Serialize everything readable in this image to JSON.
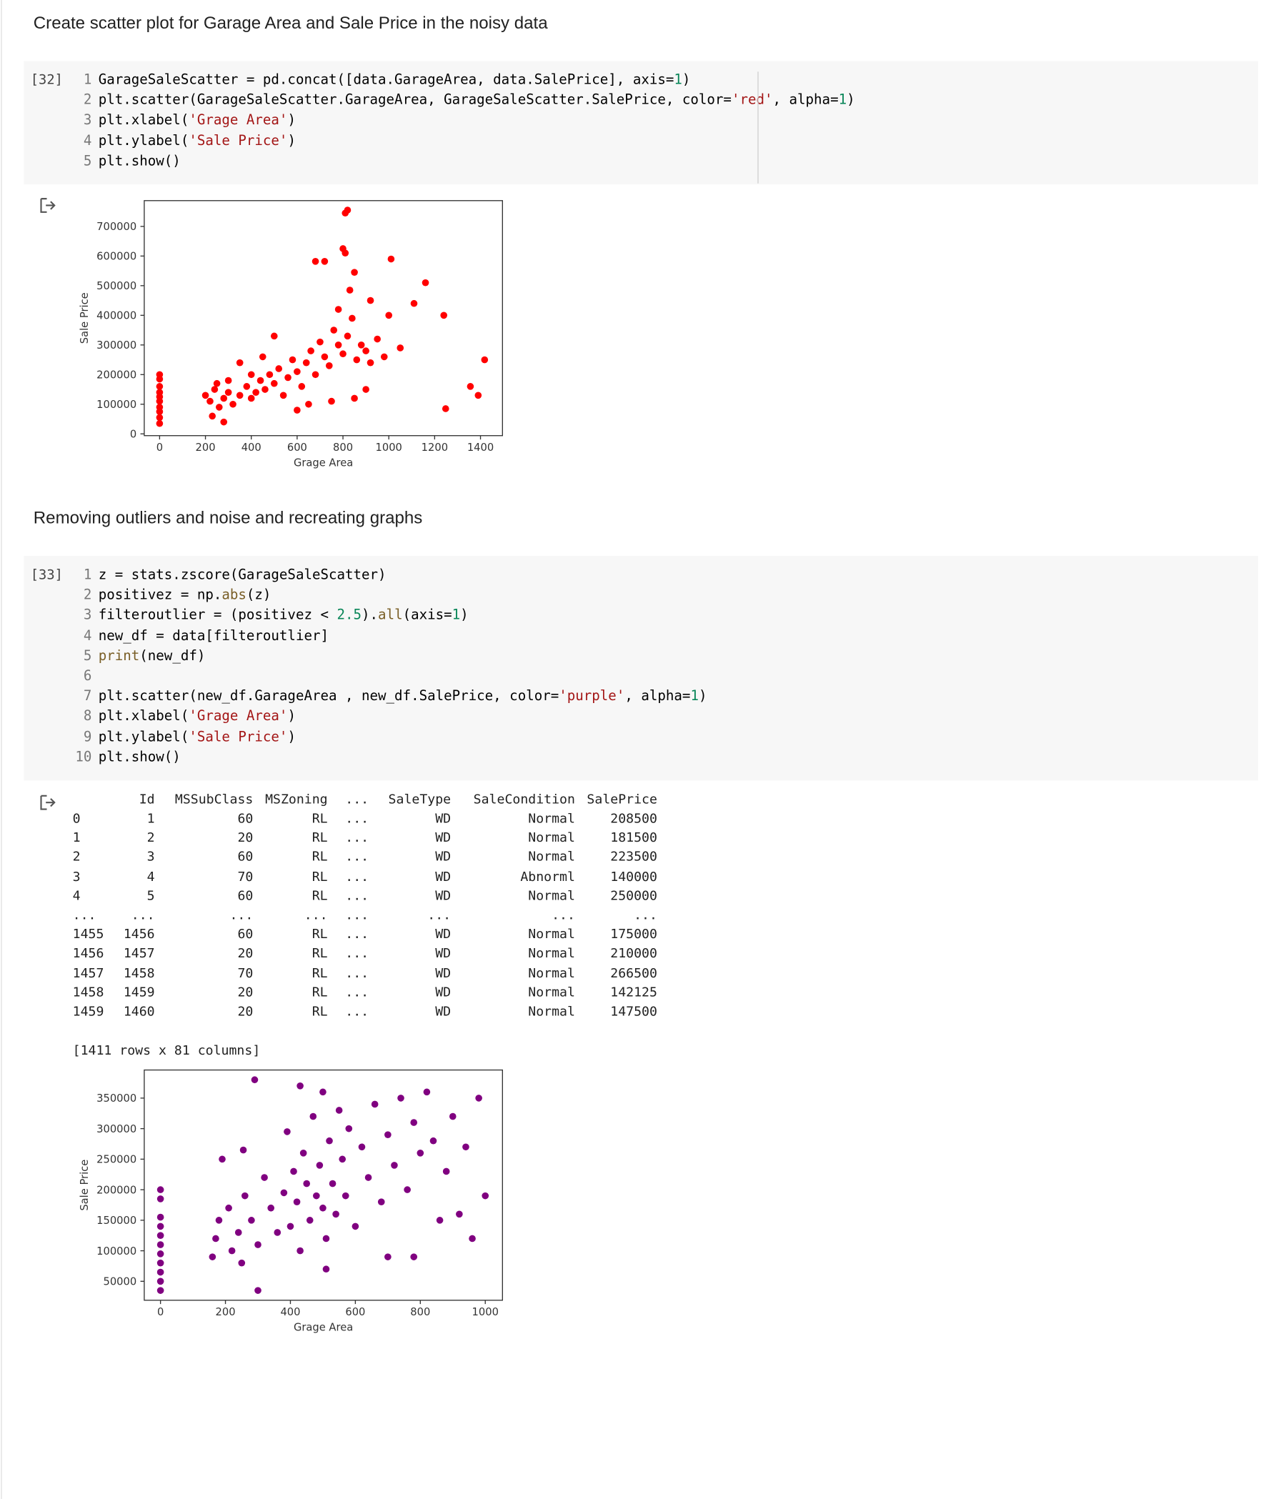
{
  "cells": [
    {
      "text": "Create scatter plot for Garage Area and Sale Price in the noisy data"
    },
    {
      "count": "[32]",
      "lines": [
        {
          "n": 1,
          "code": "GarageSaleScatter = pd.concat([data.GarageArea, data.SalePrice], axis=1)"
        },
        {
          "n": 2,
          "code": "plt.scatter(GarageSaleScatter.GarageArea, GarageSaleScatter.SalePrice, color='red', alpha=1)"
        },
        {
          "n": 3,
          "code": "plt.xlabel('Grage Area')"
        },
        {
          "n": 4,
          "code": "plt.ylabel('Sale Price')"
        },
        {
          "n": 5,
          "code": "plt.show()"
        }
      ]
    },
    {
      "text": "Removing outliers and noise and recreating graphs"
    },
    {
      "count": "[33]",
      "lines": [
        {
          "n": 1,
          "code": "z = stats.zscore(GarageSaleScatter)"
        },
        {
          "n": 2,
          "code": "positivez = np.abs(z)"
        },
        {
          "n": 3,
          "code": "filteroutlier = (positivez < 2.5).all(axis=1)"
        },
        {
          "n": 4,
          "code": "new_df = data[filteroutlier]"
        },
        {
          "n": 5,
          "code": "print(new_df)"
        },
        {
          "n": 6
        },
        {
          "n": 7,
          "code": "plt.scatter(new_df.GarageArea , new_df.SalePrice, color='purple', alpha=1)"
        },
        {
          "n": 8,
          "code": "plt.xlabel('Grage Area')"
        },
        {
          "n": 9,
          "code": "plt.ylabel('Sale Price')"
        },
        {
          "n": 10,
          "code": "plt.show()"
        }
      ]
    }
  ],
  "table": {
    "header": [
      "Id",
      "MSSubClass",
      "MSZoning",
      "...",
      "SaleType",
      "SaleCondition",
      "SalePrice"
    ],
    "rows": [
      [
        "0",
        "1",
        "60",
        "RL",
        "...",
        "WD",
        "Normal",
        "208500"
      ],
      [
        "1",
        "2",
        "20",
        "RL",
        "...",
        "WD",
        "Normal",
        "181500"
      ],
      [
        "2",
        "3",
        "60",
        "RL",
        "...",
        "WD",
        "Normal",
        "223500"
      ],
      [
        "3",
        "4",
        "70",
        "RL",
        "...",
        "WD",
        "Abnorml",
        "140000"
      ],
      [
        "4",
        "5",
        "60",
        "RL",
        "...",
        "WD",
        "Normal",
        "250000"
      ],
      [
        "...",
        "...",
        "...",
        "...",
        "...",
        "...",
        "...",
        "..."
      ],
      [
        "1455",
        "1456",
        "60",
        "RL",
        "...",
        "WD",
        "Normal",
        "175000"
      ],
      [
        "1456",
        "1457",
        "20",
        "RL",
        "...",
        "WD",
        "Normal",
        "210000"
      ],
      [
        "1457",
        "1458",
        "70",
        "RL",
        "...",
        "WD",
        "Normal",
        "266500"
      ],
      [
        "1458",
        "1459",
        "20",
        "RL",
        "...",
        "WD",
        "Normal",
        "142125"
      ],
      [
        "1459",
        "1460",
        "20",
        "RL",
        "...",
        "WD",
        "Normal",
        "147500"
      ]
    ],
    "footer": "[1411 rows x 81 columns]"
  },
  "chart_data": [
    {
      "type": "scatter",
      "color": "red",
      "xlabel": "Grage Area",
      "ylabel": "Sale Price",
      "xlim": [
        -67,
        1496
      ],
      "ylim": [
        -6000,
        787000
      ],
      "xticks": [
        0,
        200,
        400,
        600,
        800,
        1000,
        1200,
        1400
      ],
      "yticks": [
        0,
        100000,
        200000,
        300000,
        400000,
        500000,
        600000,
        700000
      ],
      "x": [
        0,
        0,
        0,
        0,
        0,
        0,
        0,
        0,
        0,
        0,
        200,
        220,
        240,
        260,
        280,
        300,
        320,
        350,
        380,
        400,
        420,
        440,
        460,
        480,
        500,
        520,
        540,
        560,
        580,
        600,
        620,
        640,
        660,
        680,
        700,
        720,
        740,
        760,
        780,
        800,
        820,
        840,
        860,
        880,
        900,
        920,
        950,
        980,
        500,
        450,
        400,
        350,
        300,
        250,
        230,
        280,
        600,
        650,
        750,
        850,
        900,
        820,
        810,
        800,
        810,
        680,
        720,
        1010,
        850,
        1160,
        830,
        1110,
        1240,
        1356,
        1390,
        1418,
        1248,
        1050,
        1000,
        920,
        780
      ],
      "values": [
        35000,
        55000,
        75000,
        90000,
        110000,
        125000,
        140000,
        160000,
        185000,
        200000,
        130000,
        110000,
        150000,
        90000,
        120000,
        140000,
        100000,
        130000,
        160000,
        120000,
        140000,
        180000,
        150000,
        200000,
        170000,
        220000,
        130000,
        190000,
        250000,
        210000,
        160000,
        240000,
        280000,
        200000,
        310000,
        260000,
        230000,
        350000,
        300000,
        270000,
        330000,
        390000,
        250000,
        300000,
        280000,
        240000,
        320000,
        260000,
        330000,
        260000,
        200000,
        240000,
        180000,
        170000,
        60000,
        40000,
        80000,
        100000,
        110000,
        120000,
        150000,
        755000,
        745000,
        625000,
        610000,
        582000,
        582000,
        590000,
        545000,
        510000,
        485000,
        440000,
        400000,
        160000,
        130000,
        250000,
        85000,
        290000,
        400000,
        450000,
        420000
      ]
    },
    {
      "type": "scatter",
      "color": "purple",
      "xlabel": "Grage Area",
      "ylabel": "Sale Price",
      "xlim": [
        -50,
        1053
      ],
      "ylim": [
        19000,
        396000
      ],
      "xticks": [
        0,
        200,
        400,
        600,
        800,
        1000
      ],
      "yticks": [
        50000,
        100000,
        150000,
        200000,
        250000,
        300000,
        350000
      ],
      "x": [
        0,
        0,
        0,
        0,
        0,
        0,
        0,
        0,
        0,
        0,
        0,
        160,
        170,
        180,
        190,
        210,
        220,
        240,
        250,
        255,
        260,
        280,
        300,
        300,
        320,
        340,
        360,
        380,
        390,
        400,
        410,
        420,
        430,
        440,
        450,
        460,
        470,
        480,
        490,
        500,
        510,
        520,
        530,
        540,
        550,
        560,
        570,
        580,
        600,
        620,
        640,
        660,
        680,
        700,
        720,
        740,
        760,
        780,
        800,
        820,
        840,
        860,
        880,
        900,
        920,
        940,
        960,
        980,
        1000,
        430,
        500,
        290,
        700,
        780,
        510
      ],
      "values": [
        35000,
        50000,
        65000,
        80000,
        95000,
        110000,
        125000,
        140000,
        155000,
        185000,
        200000,
        90000,
        120000,
        150000,
        250000,
        170000,
        100000,
        130000,
        80000,
        265000,
        190000,
        150000,
        110000,
        35000,
        220000,
        170000,
        130000,
        195000,
        295000,
        140000,
        230000,
        180000,
        100000,
        260000,
        210000,
        150000,
        320000,
        190000,
        240000,
        170000,
        120000,
        280000,
        210000,
        160000,
        330000,
        250000,
        190000,
        300000,
        140000,
        270000,
        220000,
        340000,
        180000,
        290000,
        240000,
        350000,
        200000,
        310000,
        260000,
        360000,
        280000,
        150000,
        230000,
        320000,
        160000,
        270000,
        120000,
        350000,
        190000,
        370000,
        360000,
        380000,
        90000,
        90000,
        70000
      ]
    }
  ]
}
